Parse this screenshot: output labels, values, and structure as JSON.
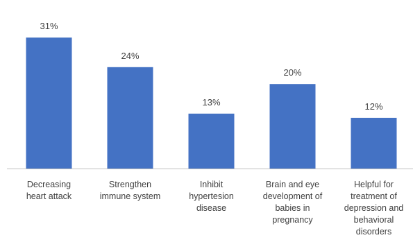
{
  "chart_data": {
    "type": "bar",
    "title": "",
    "xlabel": "",
    "ylabel": "",
    "ylim": [
      0,
      33
    ],
    "grid": false,
    "legend": "none",
    "bar_color": "#4472C4",
    "axis_color": "#BFBFBF",
    "label_color": "#404040",
    "categories": [
      [
        "Decreasing",
        "heart attack"
      ],
      [
        "Strengthen",
        "immune system"
      ],
      [
        "Inhibit",
        "hypertesion",
        "disease"
      ],
      [
        "Brain and eye",
        "development of",
        "babies in",
        "pregnancy"
      ],
      [
        "Helpful for",
        "treatment of",
        "depression and",
        "behavioral",
        "disorders"
      ]
    ],
    "values": [
      31,
      24,
      13,
      20,
      12
    ],
    "value_labels": [
      "31%",
      "24%",
      "13%",
      "20%",
      "12%"
    ]
  }
}
